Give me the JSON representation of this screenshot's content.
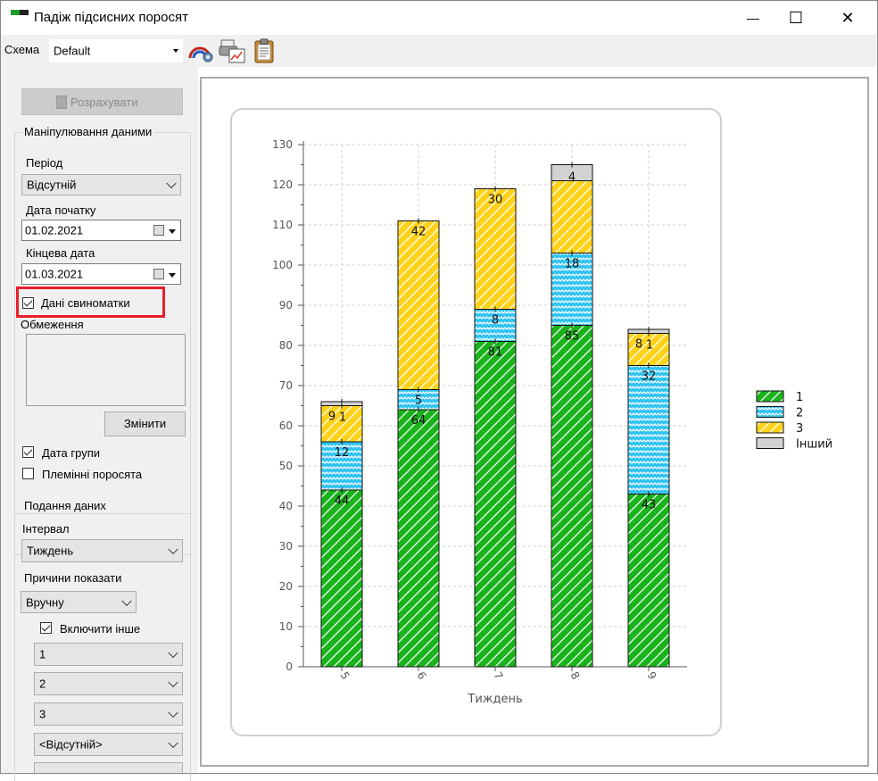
{
  "window": {
    "title": "Падіж підсисних поросят",
    "controls": {
      "minimize": "—",
      "maximize": "☐",
      "close": "✕"
    }
  },
  "toolbar": {
    "scheme_label": "Схема",
    "scheme_value": "Default",
    "icons": [
      "chart-settings-icon",
      "print-preview-icon",
      "clipboard-icon"
    ]
  },
  "left": {
    "calculate_label": "Розрахувати",
    "data_group": {
      "title": "Маніпулювання даними",
      "period_label": "Період",
      "period_value": "Відсутній",
      "start_label": "Дата початку",
      "start_value": "01.02.2021",
      "end_label": "Кінцева дата",
      "end_value": "01.03.2021",
      "sow_data_label": "Дані свиноматки",
      "sow_data_checked": true,
      "limits_label": "Обмеження",
      "change_label": "Змінити",
      "group_date_label": "Дата групи",
      "group_date_checked": true,
      "breeding_label": "Племінні поросята",
      "breeding_checked": false
    },
    "view_group": {
      "title": "Подання даних",
      "interval_label": "Інтервал",
      "interval_value": "Тиждень",
      "reasons_label": "Причини показати",
      "reasons_value": "Вручну",
      "include_other_label": "Включити інше",
      "include_other_checked": true,
      "reason_selects": [
        "1",
        "2",
        "3",
        "<Відсутній>"
      ]
    }
  },
  "chart_data": {
    "type": "bar",
    "stacked": true,
    "xlabel": "Тиждень",
    "ylabel": "",
    "ylim": [
      0,
      130
    ],
    "ytick_step": 10,
    "grid": true,
    "legend_position": "right",
    "categories": [
      "5",
      "6",
      "7",
      "8",
      "9"
    ],
    "series": [
      {
        "name": "1",
        "values": [
          44,
          64,
          81,
          85,
          43
        ],
        "color": "#19b31c",
        "pattern": "diagonal-hatch"
      },
      {
        "name": "2",
        "values": [
          12,
          5,
          8,
          18,
          32
        ],
        "color": "#2fc3f2",
        "pattern": "wave"
      },
      {
        "name": "3",
        "values": [
          9,
          42,
          30,
          18,
          8
        ],
        "color": "#ffd21a",
        "pattern": "diagonal-hatch"
      },
      {
        "name": "Інший",
        "values": [
          1,
          0,
          0,
          4,
          1
        ],
        "color": "#d3d3d3",
        "pattern": "solid"
      }
    ],
    "data_labels": [
      [
        "44",
        "64",
        "81",
        "85",
        "43"
      ],
      [
        "12",
        "5",
        "8",
        "18",
        "32"
      ],
      [
        "9",
        "42",
        "30",
        "",
        "8"
      ],
      [
        "1",
        "",
        "",
        "4",
        "1"
      ]
    ]
  }
}
